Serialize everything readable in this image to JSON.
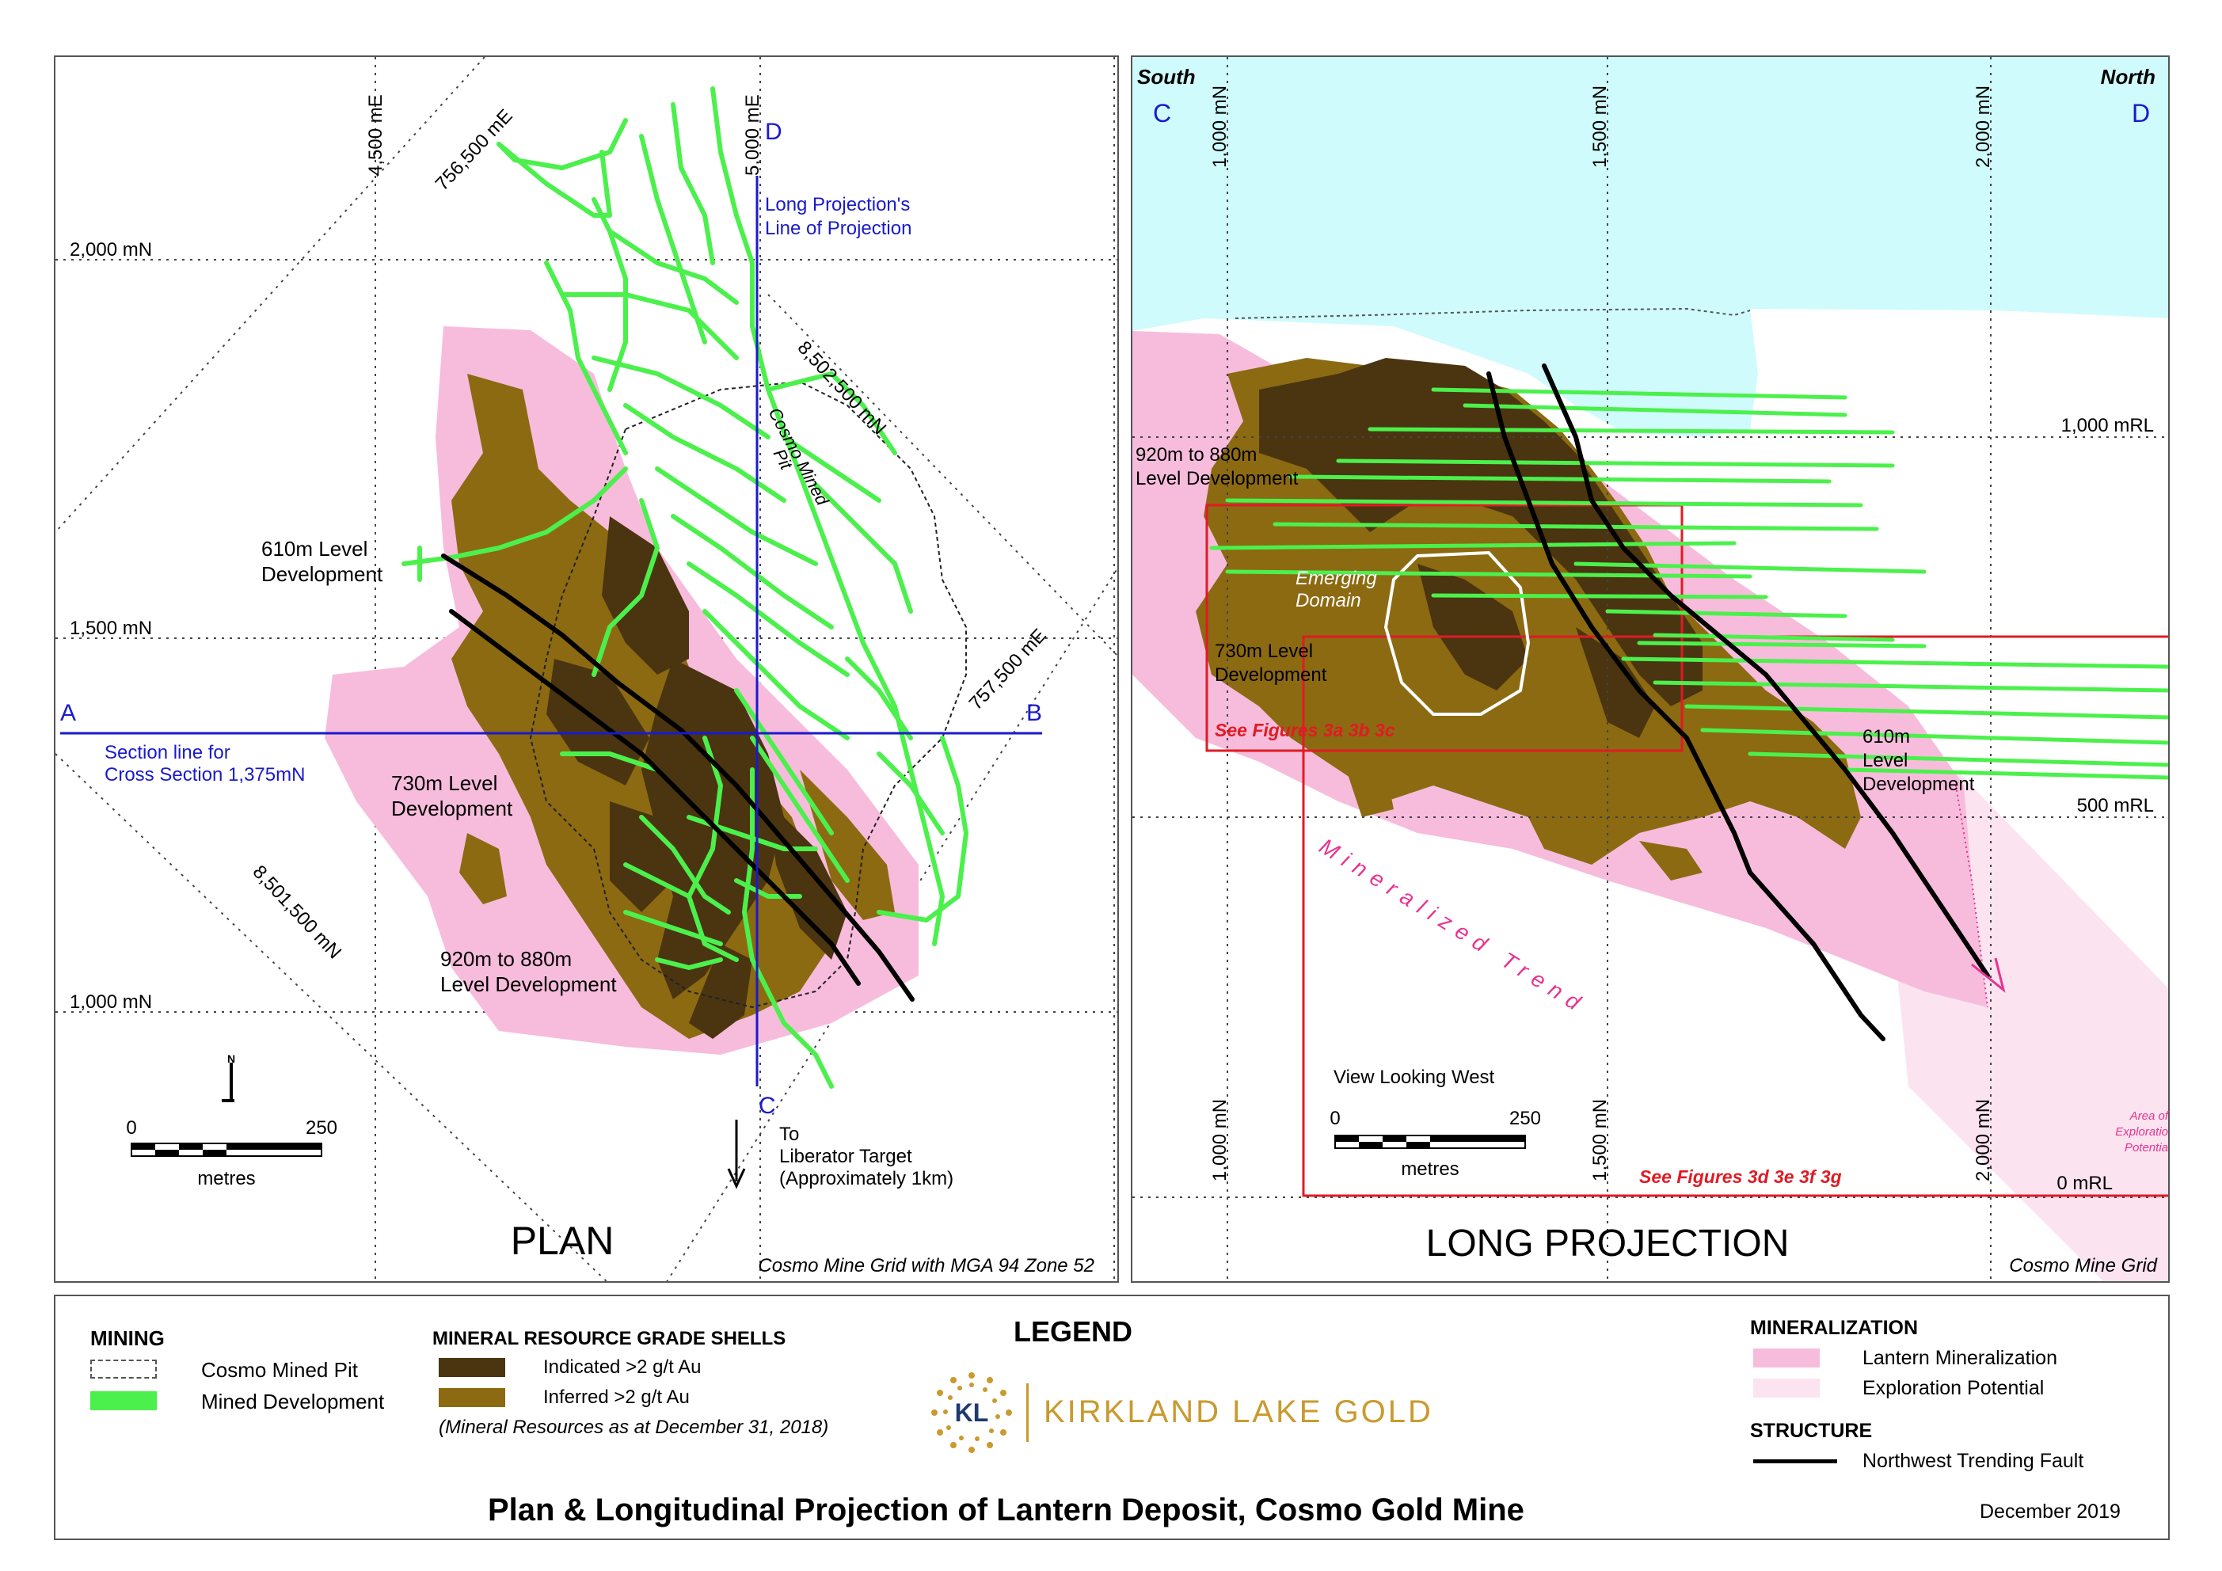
{
  "plan": {
    "grid_labels": {
      "e4500": "4,500 mE",
      "e5000": "5,000 mE",
      "n2000": "2,000 mN",
      "n1500": "1,500 mN",
      "n1000": "1,000 mN",
      "mga_e756500": "756,500 mE",
      "mga_e757500": "757,500 mE",
      "mga_n8502500": "8,502,500 mN",
      "mga_n8501500": "8,501,500 mN"
    },
    "line_ends": {
      "a": "A",
      "b": "B",
      "c": "C",
      "d": "D"
    },
    "long_proj_line": [
      "Long Projection's",
      "Line of Projection"
    ],
    "section_line": [
      "Section line for",
      "Cross Section 1,375mN"
    ],
    "pit_label": [
      "Cosmo Mined",
      "Pit"
    ],
    "levels": {
      "l610": [
        "610m Level",
        "Development"
      ],
      "l730": [
        "730m Level",
        "Development"
      ],
      "l920": [
        "920m to 880m",
        "Level Development"
      ]
    },
    "target": [
      "To",
      "Liberator Target",
      "(Approximately 1km)"
    ],
    "north": "N",
    "scale": {
      "zero": "0",
      "max": "250",
      "unit": "metres"
    },
    "title": "PLAN",
    "grid_note": "Cosmo Mine Grid with MGA 94 Zone 52"
  },
  "long": {
    "south": "South",
    "north_label": "North",
    "end_c": "C",
    "end_d": "D",
    "grid_labels": {
      "n1000": "1,000 mN",
      "n1500": "1,500 mN",
      "n2000": "2,000 mN",
      "rl1000": "1,000 mRL",
      "rl500": "500 mRL",
      "rl0": "0 mRL"
    },
    "levels": {
      "l920": [
        "920m to 880m",
        "Level Development"
      ],
      "l730": [
        "730m Level",
        "Development"
      ],
      "l610": [
        "610m",
        "Level",
        "Development"
      ]
    },
    "emerging": [
      "Emerging",
      "Domain"
    ],
    "see_abc": "See Figures 3a 3b 3c",
    "see_defg": "See Figures 3d 3e 3f 3g",
    "trend": "Mineralized Trend",
    "view": "View Looking West",
    "scale": {
      "zero": "0",
      "max": "250",
      "unit": "metres"
    },
    "area_label": [
      "Area of",
      "Exploratio",
      "Potentia"
    ],
    "title": "LONG PROJECTION",
    "grid_note": "Cosmo Mine Grid"
  },
  "legend": {
    "title": "LEGEND",
    "mining": {
      "heading": "MINING",
      "items": [
        "Cosmo Mined Pit",
        "Mined Development"
      ]
    },
    "grade": {
      "heading": "MINERAL RESOURCE GRADE SHELLS",
      "items": [
        "Indicated >2 g/t Au",
        "Inferred >2 g/t Au"
      ],
      "note": "(Mineral Resources as at December 31, 2018)"
    },
    "mineralization": {
      "heading": "MINERALIZATION",
      "items": [
        "Lantern Mineralization",
        "Exploration Potential"
      ]
    },
    "structure": {
      "heading": "STRUCTURE",
      "items": [
        "Northwest Trending Fault"
      ]
    },
    "logo": {
      "mark": "KL",
      "name": "KIRKLAND LAKE GOLD"
    },
    "main_title": "Plan & Longitudinal Projection of Lantern Deposit, Cosmo Gold Mine",
    "date": "December 2019"
  },
  "colors": {
    "pink": "#f7bcdc",
    "pale_pink": "#fbe3f0",
    "indicated": "#4a3510",
    "inferred": "#8c6a12",
    "mined_dev": "#4cf04c",
    "fault": "#000000",
    "grid_blue": "#1a1acc",
    "box_red": "#e01b24",
    "sky": "#cffbfc",
    "trend": "#e8338f"
  }
}
